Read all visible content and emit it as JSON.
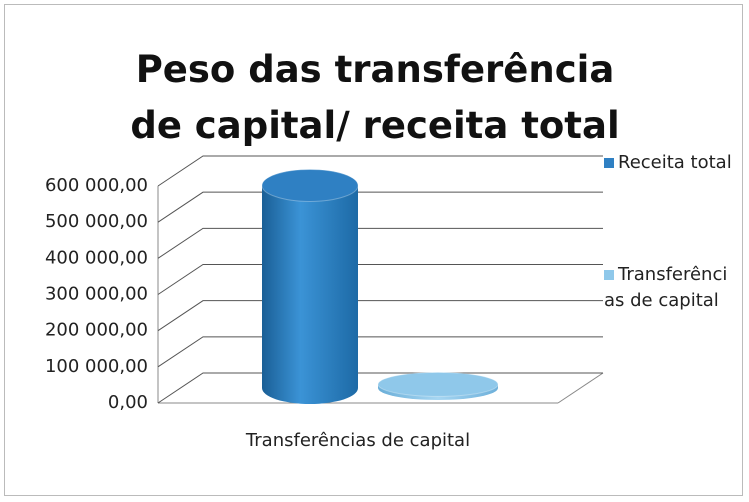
{
  "chart_data": {
    "type": "bar3d",
    "title": "Peso das transferência de capital/ receita total",
    "categories": [
      "Transferências de capital"
    ],
    "series": [
      {
        "name": "Receita total",
        "color": "#2f80c3",
        "values": [
          560000
        ]
      },
      {
        "name": "Transferências de capital",
        "color": "#8fc8ea",
        "values": [
          10000
        ]
      }
    ],
    "ylim": [
      0,
      600000
    ],
    "yticks": [
      {
        "value": 0,
        "label": "0,00"
      },
      {
        "value": 100000,
        "label": "100 000,00"
      },
      {
        "value": 200000,
        "label": "200 000,00"
      },
      {
        "value": 300000,
        "label": "300 000,00"
      },
      {
        "value": 400000,
        "label": "400 000,00"
      },
      {
        "value": 500000,
        "label": "500 000,00"
      },
      {
        "value": 600000,
        "label": "600 000,00"
      }
    ],
    "grid": true,
    "legend": "right"
  }
}
